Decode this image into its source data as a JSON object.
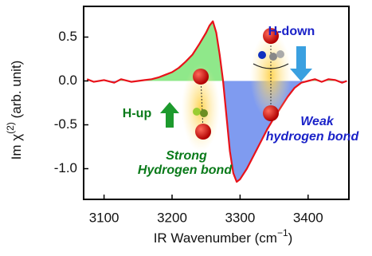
{
  "chart_data": {
    "type": "line",
    "x_label_parts": [
      "IR Wavenumber (cm",
      "−1",
      ")"
    ],
    "y_label_parts": [
      "Im χ",
      "(2)",
      " (arb. unit)"
    ],
    "x": [
      3075,
      3085,
      3100,
      3115,
      3125,
      3140,
      3150,
      3160,
      3170,
      3180,
      3190,
      3200,
      3210,
      3220,
      3230,
      3240,
      3250,
      3255,
      3260,
      3265,
      3270,
      3275,
      3280,
      3285,
      3290,
      3295,
      3300,
      3310,
      3320,
      3330,
      3340,
      3350,
      3360,
      3370,
      3380,
      3390,
      3400,
      3410,
      3420,
      3430,
      3440,
      3450,
      3457
    ],
    "series": [
      {
        "name": "Im χ(2)",
        "color": "#e8121a",
        "values": [
          0.02,
          -0.01,
          0.01,
          -0.02,
          0.02,
          -0.01,
          0.0,
          0.01,
          0.02,
          0.04,
          0.07,
          0.1,
          0.15,
          0.22,
          0.3,
          0.42,
          0.55,
          0.63,
          0.68,
          0.55,
          0.3,
          0.0,
          -0.4,
          -0.8,
          -1.05,
          -1.15,
          -1.12,
          -1.0,
          -0.85,
          -0.7,
          -0.55,
          -0.42,
          -0.3,
          -0.18,
          -0.08,
          -0.02,
          0.0,
          0.02,
          -0.01,
          0.02,
          0.01,
          -0.02,
          0.0
        ]
      }
    ],
    "positive_fill": "#8fe88a",
    "negative_fill": "#7f9bf0",
    "xlim": [
      3070,
      3460
    ],
    "xticks": [
      3100,
      3200,
      3300,
      3400
    ],
    "ylim": [
      -1.35,
      0.85
    ],
    "yticks": [
      0.5,
      {
        "value": 0,
        "label": "0.0"
      },
      -0.5,
      {
        "value": -1,
        "label": "-1.0"
      }
    ],
    "annotations": {
      "h_down": "H-down",
      "h_up": "H-up",
      "weak": [
        "Weak",
        "hydrogen bond"
      ],
      "strong": [
        "Strong",
        "Hydrogen bond"
      ]
    }
  }
}
